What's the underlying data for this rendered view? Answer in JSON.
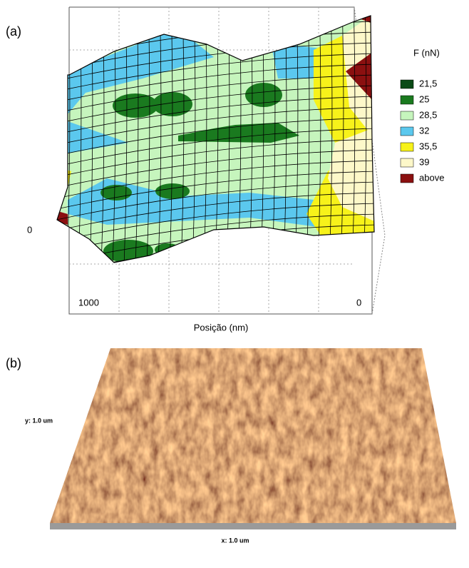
{
  "panel_a": {
    "label": "(a)",
    "legend": {
      "title": "F (nN)",
      "items": [
        {
          "label": "21,5",
          "color": "#0b4a16"
        },
        {
          "label": "25",
          "color": "#1a7a1f"
        },
        {
          "label": "28,5",
          "color": "#c6f5bd"
        },
        {
          "label": "32",
          "color": "#5bc8ee"
        },
        {
          "label": "35,5",
          "color": "#f7f21a"
        },
        {
          "label": "39",
          "color": "#fdf8c9"
        },
        {
          "label": "above",
          "color": "#8b1010"
        }
      ]
    },
    "axis_labels": [
      "1000",
      "0"
    ],
    "side_label": "0",
    "axis_title": "Posição (nm)"
  },
  "panel_b": {
    "label": "(b)",
    "y_label": "y: 1.0 um",
    "x_label": "x: 1.0 um"
  }
}
